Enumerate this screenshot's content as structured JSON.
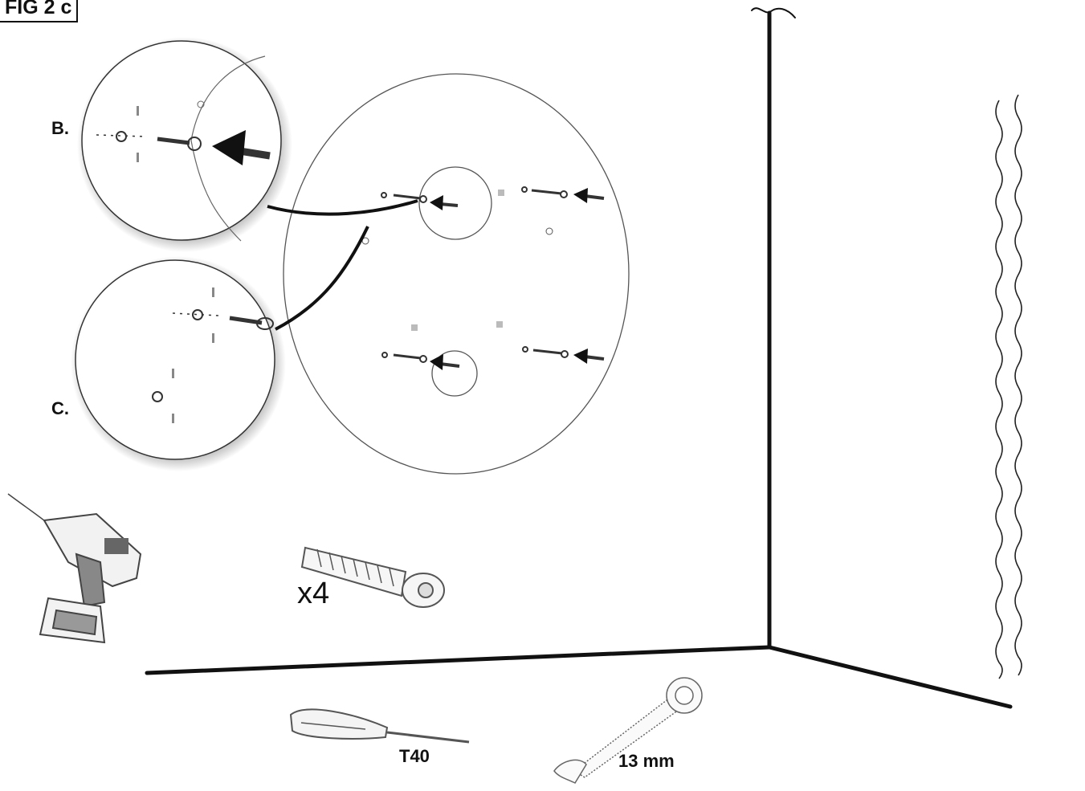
{
  "figure": {
    "title": "FIG 2 c",
    "detail_b_label": "B.",
    "detail_c_label": "C."
  },
  "parts": {
    "bolt_quantity": "x4",
    "screwdriver_size": "T40",
    "wrench_size": "13 mm"
  },
  "icons": [
    "drill-icon",
    "lag-bolt-icon",
    "torx-screwdriver-icon",
    "wrench-icon"
  ],
  "colors": {
    "line": "#111111",
    "thin_line": "#666666",
    "background": "#ffffff"
  }
}
